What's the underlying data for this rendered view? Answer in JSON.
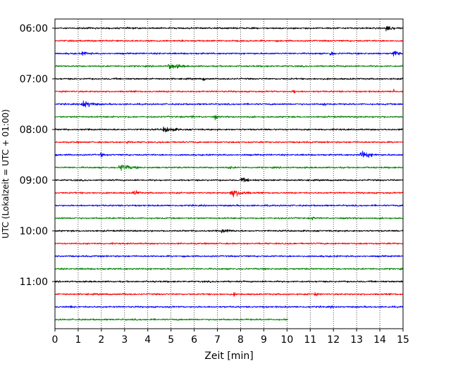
{
  "chart_data": {
    "type": "line",
    "subtype": "helicorder / seismogram drum plot",
    "xlabel": "Zeit  [min]",
    "ylabel": "UTC (Lokalzeit = UTC + 01:00)",
    "xlim": [
      0,
      15
    ],
    "x_ticks": [
      0,
      1,
      2,
      3,
      4,
      5,
      6,
      7,
      8,
      9,
      10,
      11,
      12,
      13,
      14,
      15
    ],
    "x_tick_labels": [
      "0",
      "1",
      "2",
      "3",
      "4",
      "5",
      "6",
      "7",
      "8",
      "9",
      "10",
      "11",
      "12",
      "13",
      "14",
      "15"
    ],
    "y_tick_labels": [
      "06:00",
      "07:00",
      "08:00",
      "09:00",
      "10:00",
      "11:00"
    ],
    "y_tick_row_index": [
      0,
      4,
      8,
      12,
      16,
      20
    ],
    "grid": "vertical dotted lines at each minute",
    "trace_colors": [
      "#000000",
      "#ff0000",
      "#0000ff",
      "#008000"
    ],
    "row_minutes": 15,
    "rows": [
      {
        "start": "06:00",
        "color": "#000000",
        "end_min": 15,
        "events": [
          {
            "t": 14.3,
            "amp": 10,
            "dur": 0.6
          }
        ]
      },
      {
        "start": "06:15",
        "color": "#ff0000",
        "end_min": 15,
        "events": []
      },
      {
        "start": "06:30",
        "color": "#0000ff",
        "end_min": 15,
        "events": [
          {
            "t": 1.2,
            "amp": 5,
            "dur": 1.0
          },
          {
            "t": 11.9,
            "amp": 8,
            "dur": 0.3
          },
          {
            "t": 14.6,
            "amp": 9,
            "dur": 0.5
          }
        ]
      },
      {
        "start": "06:45",
        "color": "#008000",
        "end_min": 15,
        "events": [
          {
            "t": 4.9,
            "amp": 7,
            "dur": 1.6
          }
        ]
      },
      {
        "start": "07:00",
        "color": "#000000",
        "end_min": 15,
        "events": [
          {
            "t": 6.4,
            "amp": 5,
            "dur": 0.3
          }
        ]
      },
      {
        "start": "07:15",
        "color": "#ff0000",
        "end_min": 15,
        "events": [
          {
            "t": 10.3,
            "amp": 6,
            "dur": 0.3
          },
          {
            "t": 14.6,
            "amp": 7,
            "dur": 0.2
          }
        ]
      },
      {
        "start": "07:30",
        "color": "#0000ff",
        "end_min": 15,
        "events": [
          {
            "t": 1.2,
            "amp": 10,
            "dur": 1.1
          },
          {
            "t": 11.6,
            "amp": 8,
            "dur": 0.2
          }
        ]
      },
      {
        "start": "07:45",
        "color": "#008000",
        "end_min": 15,
        "events": [
          {
            "t": 5.9,
            "amp": 4,
            "dur": 0.3
          },
          {
            "t": 6.9,
            "amp": 6,
            "dur": 0.3
          }
        ]
      },
      {
        "start": "08:00",
        "color": "#000000",
        "end_min": 15,
        "events": [
          {
            "t": 4.7,
            "amp": 7,
            "dur": 1.4
          }
        ]
      },
      {
        "start": "08:15",
        "color": "#ff0000",
        "end_min": 15,
        "events": [
          {
            "t": 3.1,
            "amp": 5,
            "dur": 0.4
          }
        ]
      },
      {
        "start": "08:30",
        "color": "#0000ff",
        "end_min": 15,
        "events": [
          {
            "t": 2.0,
            "amp": 7,
            "dur": 0.2
          },
          {
            "t": 13.2,
            "amp": 9,
            "dur": 1.2
          }
        ]
      },
      {
        "start": "08:45",
        "color": "#008000",
        "end_min": 15,
        "events": [
          {
            "t": 2.8,
            "amp": 8,
            "dur": 1.4
          },
          {
            "t": 7.5,
            "amp": 4,
            "dur": 0.8
          }
        ]
      },
      {
        "start": "09:00",
        "color": "#000000",
        "end_min": 15,
        "events": [
          {
            "t": 8.0,
            "amp": 5,
            "dur": 1.6
          }
        ]
      },
      {
        "start": "09:15",
        "color": "#ff0000",
        "end_min": 15,
        "events": [
          {
            "t": 3.4,
            "amp": 6,
            "dur": 0.8
          },
          {
            "t": 7.6,
            "amp": 9,
            "dur": 1.5
          }
        ]
      },
      {
        "start": "09:30",
        "color": "#0000ff",
        "end_min": 15,
        "events": []
      },
      {
        "start": "09:45",
        "color": "#008000",
        "end_min": 15,
        "events": [
          {
            "t": 11.1,
            "amp": 5,
            "dur": 0.2
          }
        ]
      },
      {
        "start": "10:00",
        "color": "#000000",
        "end_min": 15,
        "events": [
          {
            "t": 7.2,
            "amp": 5,
            "dur": 1.4
          }
        ]
      },
      {
        "start": "10:15",
        "color": "#ff0000",
        "end_min": 15,
        "events": []
      },
      {
        "start": "10:30",
        "color": "#0000ff",
        "end_min": 15,
        "events": []
      },
      {
        "start": "10:45",
        "color": "#008000",
        "end_min": 15,
        "events": []
      },
      {
        "start": "11:00",
        "color": "#000000",
        "end_min": 15,
        "events": []
      },
      {
        "start": "11:15",
        "color": "#ff0000",
        "end_min": 15,
        "events": [
          {
            "t": 3.0,
            "amp": 4,
            "dur": 0.2
          },
          {
            "t": 7.7,
            "amp": 5,
            "dur": 0.3
          },
          {
            "t": 11.2,
            "amp": 5,
            "dur": 0.4
          }
        ]
      },
      {
        "start": "11:30",
        "color": "#0000ff",
        "end_min": 15,
        "events": [
          {
            "t": 0.7,
            "amp": 4,
            "dur": 0.2
          },
          {
            "t": 11.9,
            "amp": 4,
            "dur": 0.2
          }
        ]
      },
      {
        "start": "11:45",
        "color": "#008000",
        "end_min": 10.05,
        "events": []
      }
    ]
  }
}
